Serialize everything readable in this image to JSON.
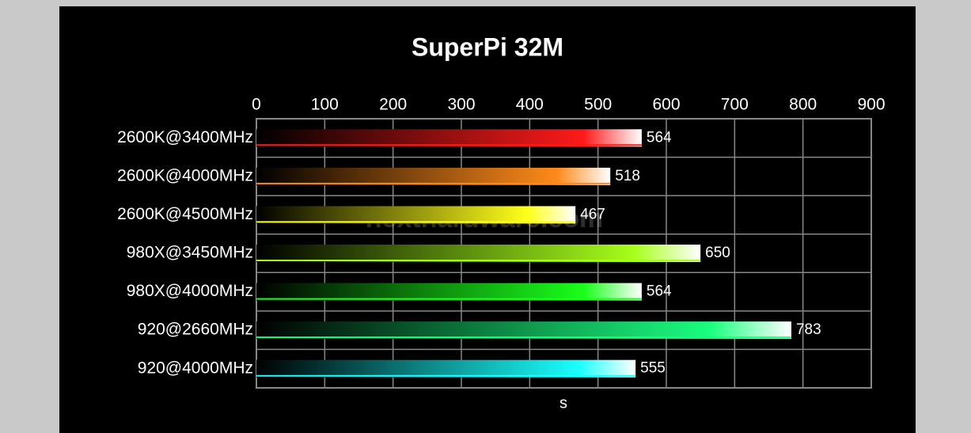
{
  "chart_data": {
    "type": "bar",
    "orientation": "horizontal",
    "title": "SuperPi 32M",
    "x_label": "s",
    "watermark": "nexthardware.com",
    "categories": [
      "2600K@3400MHz",
      "2600K@4000MHz",
      "2600K@4500MHz",
      "980X@3450MHz",
      "980X@4000MHz",
      "920@2660MHz",
      "920@4000MHz"
    ],
    "values": [
      564,
      518,
      467,
      650,
      564,
      783,
      555
    ],
    "colors": [
      "#ff1a1a",
      "#ff8a1a",
      "#ffff1a",
      "#a6ff1a",
      "#1aff1a",
      "#1aff80",
      "#1affff"
    ],
    "xlim": [
      0,
      900
    ],
    "xticks": [
      0,
      100,
      200,
      300,
      400,
      500,
      600,
      700,
      800,
      900
    ],
    "grid": true
  }
}
